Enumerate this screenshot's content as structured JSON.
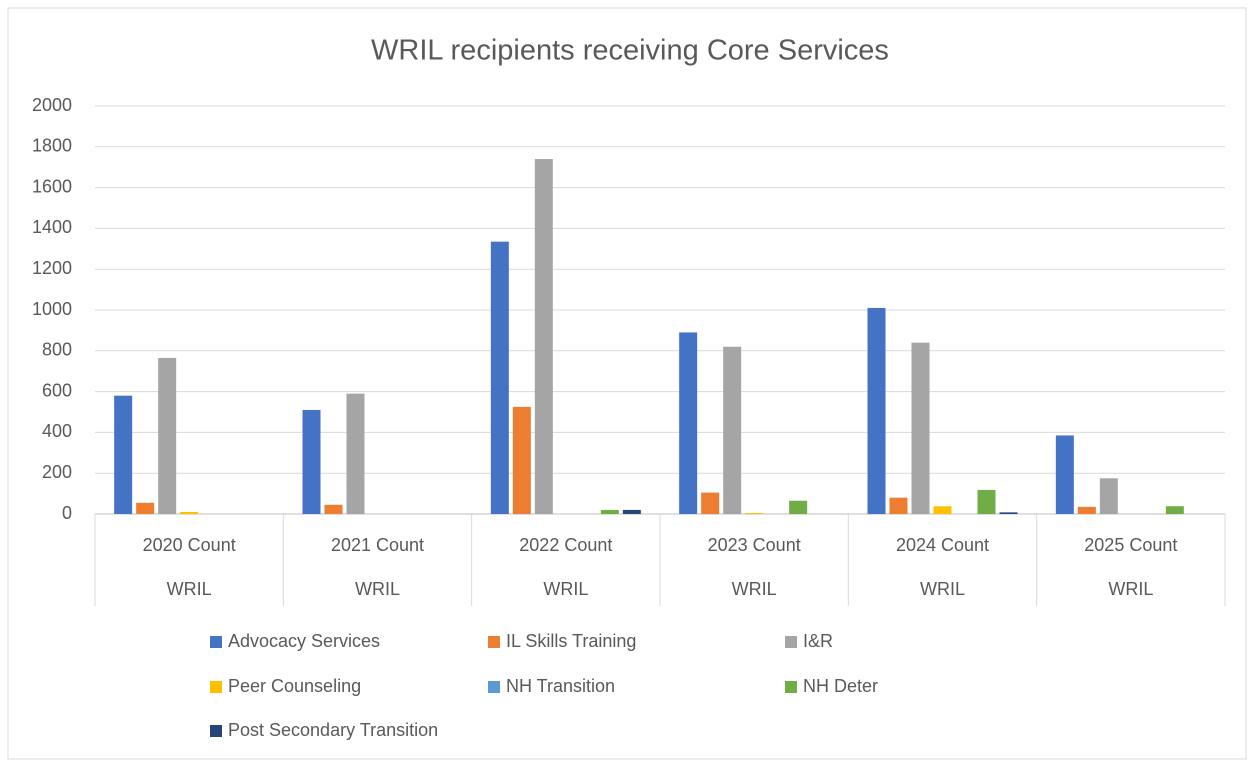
{
  "chart_data": {
    "type": "bar",
    "title": "WRIL recipients receiving Core Services",
    "categories": [
      "2020 Count",
      "2021 Count",
      "2022 Count",
      "2023 Count",
      "2024 Count",
      "2025 Count"
    ],
    "subcategories": [
      "WRIL",
      "WRIL",
      "WRIL",
      "WRIL",
      "WRIL",
      "WRIL"
    ],
    "series": [
      {
        "name": "Advocacy Services",
        "color": "#4472c4",
        "values": [
          580,
          510,
          1335,
          890,
          1010,
          385
        ]
      },
      {
        "name": "IL Skills Training",
        "color": "#ed7d31",
        "values": [
          55,
          45,
          525,
          105,
          80,
          35
        ]
      },
      {
        "name": "I&R",
        "color": "#a5a5a5",
        "values": [
          765,
          590,
          1740,
          820,
          840,
          175
        ]
      },
      {
        "name": "Peer Counseling",
        "color": "#ffc000",
        "values": [
          10,
          0,
          0,
          5,
          38,
          0
        ]
      },
      {
        "name": "NH Transition",
        "color": "#5b9bd5",
        "values": [
          0,
          0,
          0,
          0,
          0,
          0
        ]
      },
      {
        "name": "NH Deter",
        "color": "#70ad47",
        "values": [
          0,
          0,
          20,
          65,
          118,
          38
        ]
      },
      {
        "name": "Post Secondary Transition",
        "color": "#264478",
        "values": [
          0,
          0,
          20,
          0,
          8,
          0
        ]
      }
    ],
    "ylim": [
      0,
      2000
    ],
    "yticks": [
      0,
      200,
      400,
      600,
      800,
      1000,
      1200,
      1400,
      1600,
      1800,
      2000
    ],
    "grid": true,
    "legend": "bottom"
  }
}
